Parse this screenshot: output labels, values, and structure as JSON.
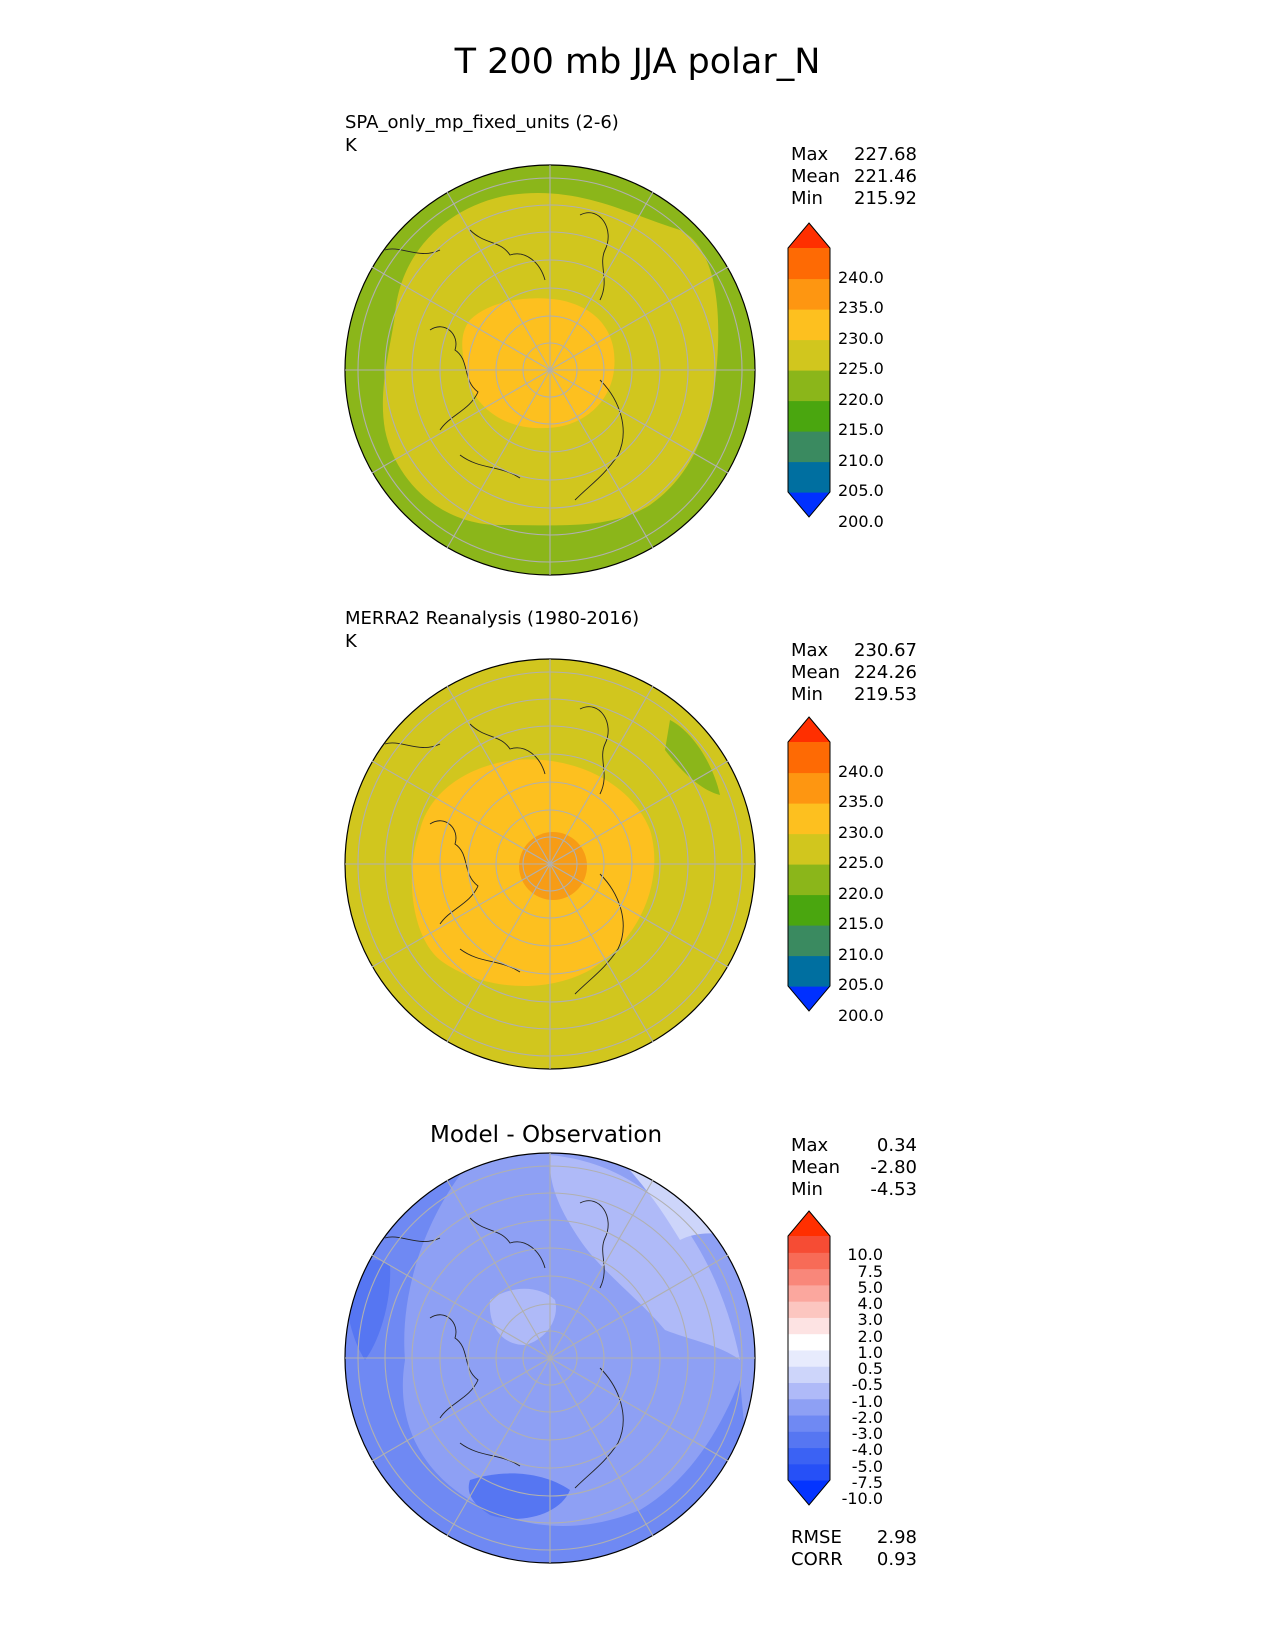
{
  "figure_title": "T 200 mb JJA polar_N",
  "panels": [
    {
      "name": "test",
      "label": "SPA_only_mp_fixed_units (2-6)",
      "units": "K",
      "stats": [
        {
          "label": "Max",
          "value": "227.68"
        },
        {
          "label": "Mean",
          "value": "221.46"
        },
        {
          "label": "Min",
          "value": "215.92"
        }
      ],
      "colorbar": {
        "ticks": [
          "240.0",
          "235.0",
          "230.0",
          "225.0",
          "220.0",
          "215.0",
          "210.0",
          "205.0",
          "200.0"
        ],
        "levels": [
          200,
          205,
          210,
          215,
          220,
          225,
          230,
          235,
          240
        ],
        "colors": [
          "#0030ff",
          "#006fa0",
          "#3a8a60",
          "#4aa60f",
          "#8bb61a",
          "#d1c61e",
          "#fdc01f",
          "#fe9611",
          "#fe6a04",
          "#ff2f00"
        ]
      }
    },
    {
      "name": "reference",
      "label": "MERRA2 Reanalysis (1980-2016)",
      "units": "K",
      "stats": [
        {
          "label": "Max",
          "value": "230.67"
        },
        {
          "label": "Mean",
          "value": "224.26"
        },
        {
          "label": "Min",
          "value": "219.53"
        }
      ],
      "colorbar": {
        "ticks": [
          "240.0",
          "235.0",
          "230.0",
          "225.0",
          "220.0",
          "215.0",
          "210.0",
          "205.0",
          "200.0"
        ],
        "levels": [
          200,
          205,
          210,
          215,
          220,
          225,
          230,
          235,
          240
        ],
        "colors": [
          "#0030ff",
          "#006fa0",
          "#3a8a60",
          "#4aa60f",
          "#8bb61a",
          "#d1c61e",
          "#fdc01f",
          "#fe9611",
          "#fe6a04",
          "#ff2f00"
        ]
      }
    },
    {
      "name": "difference",
      "title": "Model - Observation",
      "stats": [
        {
          "label": "Max",
          "value": "0.34"
        },
        {
          "label": "Mean",
          "value": "-2.80"
        },
        {
          "label": "Min",
          "value": "-4.53"
        }
      ],
      "metrics": [
        {
          "label": "RMSE",
          "value": "2.98"
        },
        {
          "label": "CORR",
          "value": "0.93"
        }
      ],
      "colorbar": {
        "ticks": [
          "10.0",
          "7.5",
          "5.0",
          "4.0",
          "3.0",
          "2.0",
          "1.0",
          "0.5",
          "-0.5",
          "-1.0",
          "-2.0",
          "-3.0",
          "-4.0",
          "-5.0",
          "-7.5",
          "-10.0"
        ],
        "levels": [
          -10,
          -7.5,
          -5,
          -4,
          -3,
          -2,
          -1,
          -0.5,
          0.5,
          1,
          2,
          3,
          4,
          5,
          7.5,
          10
        ],
        "colors": [
          "#0434ff",
          "#2650f7",
          "#3b62f4",
          "#5676f2",
          "#6f89f3",
          "#8ea0f4",
          "#afbaf8",
          "#cdd5fa",
          "#e7ebfd",
          "#ffffff",
          "#fde3e3",
          "#fcc6c0",
          "#fba79e",
          "#f9877a",
          "#f76b57",
          "#f64c34",
          "#ff2f00"
        ]
      }
    }
  ],
  "chart_data": {
    "type": "map",
    "projection": "north polar stereographic",
    "variable": "T",
    "level": "200 mb",
    "season": "JJA",
    "region": "polar_N",
    "units": "K",
    "panels": [
      {
        "name": "SPA_only_mp_fixed_units (2-6)",
        "max": 227.68,
        "mean": 221.46,
        "min": 215.92
      },
      {
        "name": "MERRA2 Reanalysis (1980-2016)",
        "max": 230.67,
        "mean": 224.26,
        "min": 219.53
      },
      {
        "name": "Model - Observation",
        "max": 0.34,
        "mean": -2.8,
        "min": -4.53,
        "rmse": 2.98,
        "corr": 0.93
      }
    ]
  }
}
